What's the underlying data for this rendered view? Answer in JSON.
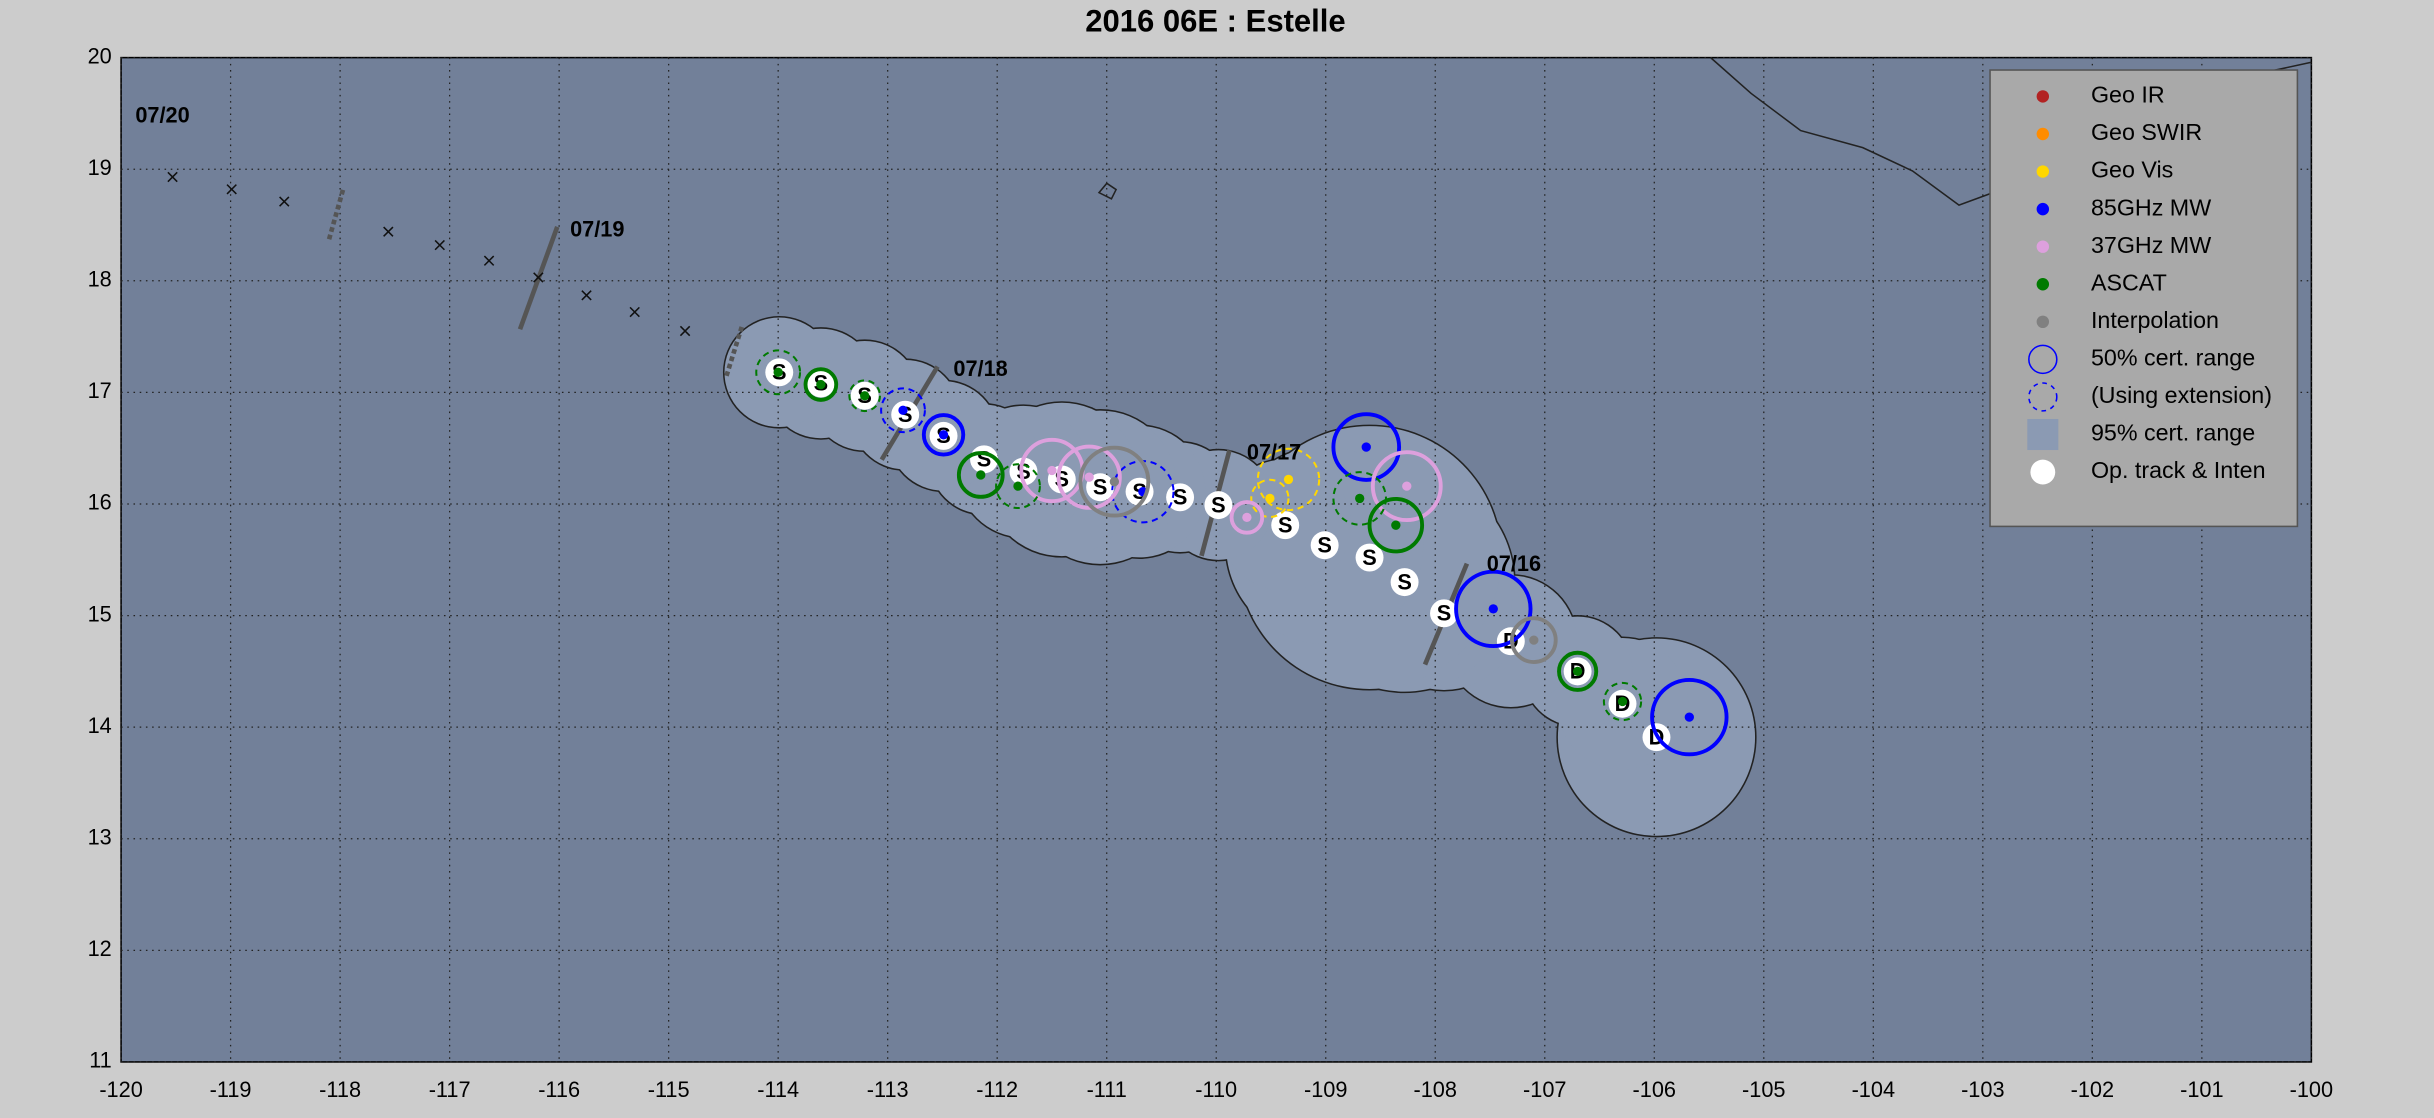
{
  "chart_data": {
    "type": "scatter",
    "title": "2016  06E :  Estelle",
    "xlim": [
      -120,
      -100
    ],
    "ylim": [
      11,
      20
    ],
    "xticks": [
      -120,
      -119,
      -118,
      -117,
      -116,
      -115,
      -114,
      -113,
      -112,
      -111,
      -110,
      -109,
      -108,
      -107,
      -106,
      -105,
      -104,
      -103,
      -102,
      -101,
      -100
    ],
    "yticks": [
      11,
      12,
      13,
      14,
      15,
      16,
      17,
      18,
      19,
      20
    ],
    "grid": true,
    "legend": "upper right",
    "series": [
      {
        "name": "Geo IR",
        "color": "#b22222",
        "x": [],
        "y": [],
        "r": [],
        "dashed": []
      },
      {
        "name": "Geo SWIR",
        "color": "#ff8c00",
        "x": [],
        "y": [],
        "r": [],
        "dashed": []
      },
      {
        "name": "Geo Vis",
        "color": "#ffd700",
        "x": [
          -109.34,
          -109.51
        ],
        "y": [
          16.22,
          16.05
        ],
        "r": [
          0.28,
          0.17
        ],
        "dashed": [
          true,
          true
        ]
      },
      {
        "name": "85GHz MW",
        "color": "#0000ff",
        "x": [
          -105.68,
          -107.47,
          -108.63,
          -110.67,
          -112.49,
          -112.86
        ],
        "y": [
          14.09,
          15.06,
          16.51,
          16.11,
          16.62,
          16.84
        ],
        "r": [
          0.34,
          0.34,
          0.3,
          0.28,
          0.18,
          0.2
        ],
        "dashed": [
          false,
          false,
          false,
          true,
          false,
          true
        ]
      },
      {
        "name": "37GHz MW",
        "color": "#dda0dd",
        "x": [
          -108.26,
          -109.72,
          -111.16,
          -111.5
        ],
        "y": [
          16.16,
          15.88,
          16.24,
          16.3
        ],
        "r": [
          0.31,
          0.14,
          0.28,
          0.28
        ],
        "dashed": [
          false,
          false,
          false,
          false
        ]
      },
      {
        "name": "ASCAT",
        "color": "#007a00",
        "x": [
          -106.7,
          -106.29,
          -108.36,
          -108.69,
          -111.81,
          -112.15,
          -113.21,
          -113.61,
          -114.0
        ],
        "y": [
          14.5,
          14.23,
          15.81,
          16.05,
          16.16,
          16.26,
          16.97,
          17.07,
          17.18
        ],
        "r": [
          0.17,
          0.17,
          0.24,
          0.24,
          0.2,
          0.2,
          0.14,
          0.14,
          0.2
        ],
        "dashed": [
          false,
          true,
          false,
          true,
          true,
          false,
          true,
          false,
          true
        ]
      },
      {
        "name": "Interpolation",
        "color": "#808080",
        "x": [
          -107.1,
          -110.93
        ],
        "y": [
          14.78,
          16.2
        ],
        "r": [
          0.2,
          0.31
        ],
        "dashed": [
          false,
          false
        ]
      }
    ],
    "legend_symbols": [
      "50% cert. range",
      "(Using extension)"
    ],
    "track": {
      "name": "Op. track & Inten",
      "range_name": "95% cert. range",
      "x": [
        -105.98,
        -106.29,
        -106.7,
        -107.31,
        -107.92,
        -108.28,
        -108.6,
        -109.01,
        -109.37,
        -109.98,
        -110.33,
        -110.7,
        -111.06,
        -111.41,
        -111.76,
        -112.12,
        -112.49,
        -112.84,
        -113.21,
        -113.61,
        -113.99
      ],
      "y": [
        13.91,
        14.21,
        14.5,
        14.77,
        15.02,
        15.3,
        15.52,
        15.63,
        15.81,
        15.99,
        16.06,
        16.11,
        16.15,
        16.22,
        16.29,
        16.4,
        16.61,
        16.8,
        16.97,
        17.08,
        17.18
      ],
      "labels": [
        "D",
        "D",
        "D",
        "D",
        "S",
        "S",
        "S",
        "S",
        "S",
        "S",
        "S",
        "S",
        "S",
        "S",
        "S",
        "S",
        "S",
        "S",
        "S",
        "S",
        "S"
      ],
      "r95": [
        0.9,
        0.6,
        0.5,
        0.6,
        0.7,
        1.0,
        1.2,
        0.9,
        0.6,
        0.5,
        0.5,
        0.6,
        0.7,
        0.7,
        0.6,
        0.5,
        0.5,
        0.5,
        0.5,
        0.5,
        0.5
      ]
    },
    "extra_track": {
      "x": [
        -119.53,
        -118.99,
        -118.51,
        -117.56,
        -117.09,
        -116.64,
        -116.19,
        -115.75,
        -115.31,
        -114.85
      ],
      "y": [
        18.93,
        18.82,
        18.71,
        18.44,
        18.32,
        18.18,
        18.03,
        17.87,
        17.72,
        17.55
      ]
    },
    "annotations": [
      {
        "text": "07/16",
        "x": -107.53,
        "y": 15.45
      },
      {
        "text": "07/17",
        "x": -109.72,
        "y": 16.45
      },
      {
        "text": "07/18",
        "x": -112.4,
        "y": 17.2
      },
      {
        "text": "07/19",
        "x": -115.9,
        "y": 18.45
      },
      {
        "text": "07/20",
        "x": -119.87,
        "y": 19.47
      }
    ]
  }
}
